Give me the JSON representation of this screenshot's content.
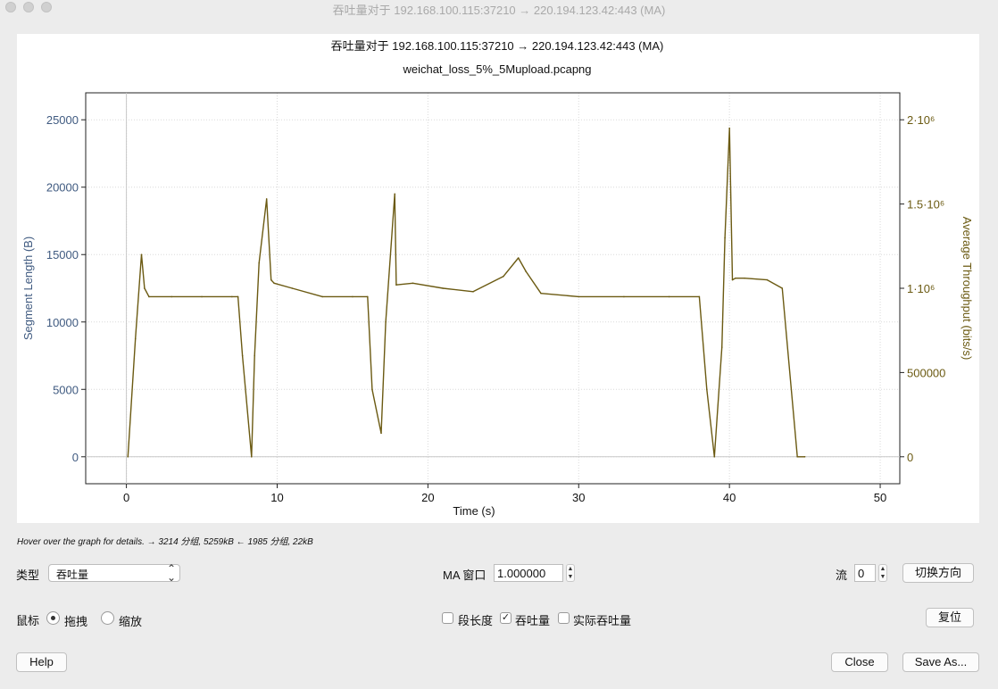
{
  "window": {
    "title": "吞吐量对于 192.168.100.115:37210 → 220.194.123.42:443 (MA)"
  },
  "chart": {
    "title": "吞吐量对于 192.168.100.115:37210 → 220.194.123.42:443 (MA)",
    "subtitle": "weichat_loss_5%_5Mupload.pcapng"
  },
  "chart_data": {
    "type": "line",
    "title": "吞吐量对于 192.168.100.115:37210 → 220.194.123.42:443 (MA)",
    "subtitle": "weichat_loss_5%_5Mupload.pcapng",
    "xlabel": "Time (s)",
    "ylabel_left": "Segment Length (B)",
    "ylabel_right": "Average Throughput (bits/s)",
    "xlim": [
      -2.7,
      51.3
    ],
    "ylim_left": [
      -2000,
      27000
    ],
    "ylim_right": [
      -160000,
      2160000
    ],
    "x_ticks": [
      "0",
      "10",
      "20",
      "30",
      "40",
      "50"
    ],
    "y_left_ticks": [
      "0",
      "5000",
      "10000",
      "15000",
      "20000",
      "25000"
    ],
    "y_right_ticks": [
      "0",
      "500000",
      "1·10⁶",
      "1.5·10⁶",
      "2·10⁶"
    ],
    "grid": true,
    "series": [
      {
        "name": "Average Throughput (bits/s)",
        "axis": "right",
        "color": "#6b5a12",
        "x": [
          0.1,
          0.6,
          1.0,
          1.2,
          1.5,
          3,
          5,
          7,
          7.4,
          7.7,
          8.3,
          8.5,
          8.8,
          9.3,
          9.6,
          9.8,
          11,
          13,
          15,
          16.0,
          16.3,
          16.9,
          17.2,
          17.8,
          17.9,
          19,
          21,
          23,
          25,
          26.0,
          26.5,
          27.5,
          30,
          33,
          36,
          38.0,
          38.5,
          39.0,
          39.5,
          39.7,
          40.0,
          40.2,
          40.4,
          41,
          42.5,
          43.5,
          44.5,
          45
        ],
        "y": [
          0,
          700000,
          1200000,
          1000000,
          950000,
          950000,
          950000,
          950000,
          950000,
          600000,
          0,
          600000,
          1150000,
          1530000,
          1050000,
          1030000,
          1000000,
          950000,
          950000,
          950000,
          400000,
          140000,
          800000,
          1560000,
          1020000,
          1030000,
          1000000,
          980000,
          1070000,
          1180000,
          1100000,
          970000,
          950000,
          950000,
          950000,
          950000,
          400000,
          0,
          650000,
          1300000,
          1950000,
          1050000,
          1060000,
          1060000,
          1050000,
          1000000,
          0,
          0
        ]
      }
    ]
  },
  "hover_text": "Hover over the graph for details. → 3214 分组, 5259kB ← 1985 分组, 22kB",
  "controls": {
    "type_label": "类型",
    "type_value": "吞吐量",
    "ma_label": "MA 窗口",
    "ma_value": "1.000000",
    "stream_label": "流",
    "stream_value": "0",
    "switch_direction": "切换方向",
    "mouse_label": "鼠标",
    "drag_label": "拖拽",
    "zoom_label": "缩放",
    "mouse_mode": "drag",
    "segment_length_label": "段长度",
    "segment_length_checked": false,
    "throughput_label": "吞吐量",
    "throughput_checked": true,
    "goodput_label": "实际吞吐量",
    "goodput_checked": false,
    "reset": "复位",
    "help": "Help",
    "close": "Close",
    "save_as": "Save As..."
  },
  "colors": {
    "throughput_line": "#6b5a12",
    "left_axis_text": "#3f5a80",
    "right_axis_text": "#6b5a12"
  }
}
